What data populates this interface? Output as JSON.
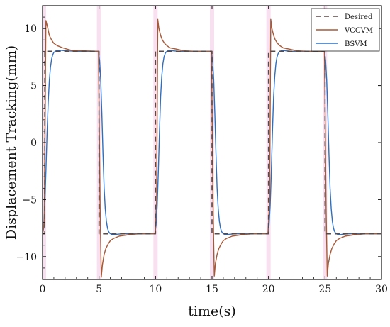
{
  "chart_data": {
    "type": "line",
    "title": "",
    "xlabel": "time(s)",
    "ylabel": "Displacement Tracking(mm)",
    "xlim": [
      0,
      30
    ],
    "ylim": [
      -12,
      12
    ],
    "x_ticks": [
      0,
      5,
      10,
      15,
      20,
      25,
      30
    ],
    "y_ticks": [
      -10,
      -5,
      0,
      5,
      10
    ],
    "x_tick_labels": [
      "0",
      "5",
      "10",
      "15",
      "20",
      "25",
      "30"
    ],
    "y_tick_labels": [
      "−10",
      "−5",
      "0",
      "5",
      "10"
    ],
    "grid": false,
    "legend_position": "top-right",
    "series": [
      {
        "name": "Desired",
        "color": "#5a4a48",
        "style": "dashed",
        "x": [
          0,
          0.2,
          0.2,
          5,
          5,
          10,
          10,
          15,
          15,
          20,
          20,
          25,
          25,
          30
        ],
        "y": [
          -8,
          -8,
          8,
          8,
          -8,
          -8,
          8,
          8,
          -8,
          -8,
          8,
          8,
          -8,
          -8
        ]
      },
      {
        "name": "VCCVM",
        "color": "#a65a3a",
        "style": "solid",
        "x": [
          0,
          0.15,
          0.3,
          0.45,
          0.6,
          0.8,
          1.0,
          1.3,
          1.8,
          2.5,
          3.5,
          4.95,
          5.1,
          5.2,
          5.3,
          5.45,
          5.6,
          5.8,
          6.0,
          6.3,
          6.8,
          7.5,
          8.5,
          9.95,
          10.1,
          10.2,
          10.3,
          10.45,
          10.6,
          10.8,
          11.0,
          11.3,
          11.8,
          12.5,
          13.5,
          14.95,
          15.1,
          15.2,
          15.3,
          15.45,
          15.6,
          15.8,
          16.0,
          16.3,
          16.8,
          17.5,
          18.5,
          19.95,
          20.1,
          20.2,
          20.3,
          20.45,
          20.6,
          20.8,
          21.0,
          21.3,
          21.8,
          22.5,
          23.5,
          24.95,
          25.1,
          25.2,
          25.3,
          25.45,
          25.6,
          25.8,
          26.0,
          26.3,
          26.8,
          27.5,
          28.5,
          30
        ],
        "y": [
          -8,
          -7,
          10.7,
          10.1,
          9.4,
          9.0,
          8.7,
          8.5,
          8.3,
          8.1,
          8.05,
          8.0,
          -6,
          -11.8,
          -10.7,
          -9.8,
          -9.3,
          -8.9,
          -8.6,
          -8.4,
          -8.2,
          -8.1,
          -8.0,
          -8.0,
          -5,
          10.8,
          10.0,
          9.4,
          9.0,
          8.7,
          8.5,
          8.3,
          8.2,
          8.05,
          8.0,
          8.0,
          -6,
          -11.7,
          -10.6,
          -9.8,
          -9.3,
          -8.9,
          -8.6,
          -8.4,
          -8.2,
          -8.1,
          -8.0,
          -8.0,
          -5,
          10.8,
          10.0,
          9.4,
          9.0,
          8.7,
          8.5,
          8.3,
          8.2,
          8.05,
          8.0,
          8.0,
          -6,
          -11.7,
          -10.6,
          -9.8,
          -9.3,
          -8.9,
          -8.6,
          -8.4,
          -8.2,
          -8.1,
          -8.0,
          -8.0
        ]
      },
      {
        "name": "BSVM",
        "color": "#2f6fbf",
        "style": "solid",
        "x": [
          0,
          0.1,
          0.2,
          0.3,
          0.4,
          0.5,
          0.6,
          0.7,
          0.8,
          0.9,
          1.0,
          1.2,
          1.5,
          2.0,
          3.0,
          4.95,
          5.05,
          5.15,
          5.25,
          5.35,
          5.45,
          5.55,
          5.65,
          5.75,
          5.85,
          5.95,
          6.2,
          6.5,
          7.0,
          8.0,
          9.95,
          10.05,
          10.15,
          10.25,
          10.35,
          10.45,
          10.55,
          10.65,
          10.75,
          10.85,
          10.95,
          11.2,
          11.5,
          12.0,
          13.0,
          14.95,
          15.05,
          15.15,
          15.25,
          15.35,
          15.45,
          15.55,
          15.65,
          15.75,
          15.85,
          15.95,
          16.2,
          16.5,
          17.0,
          18.0,
          19.95,
          20.05,
          20.15,
          20.25,
          20.35,
          20.45,
          20.55,
          20.65,
          20.75,
          20.85,
          20.95,
          21.2,
          21.5,
          22.0,
          23.0,
          24.95,
          25.05,
          25.15,
          25.25,
          25.35,
          25.45,
          25.55,
          25.65,
          25.75,
          25.85,
          25.95,
          26.2,
          26.5,
          27.0,
          28.0,
          30
        ],
        "y": [
          -8,
          -7.5,
          -5.5,
          -2.5,
          0.8,
          3.5,
          5.4,
          6.6,
          7.3,
          7.7,
          7.9,
          8.05,
          8.1,
          8.05,
          8.0,
          8.0,
          7.2,
          5.5,
          2.5,
          -1.0,
          -4.0,
          -5.8,
          -6.9,
          -7.5,
          -7.8,
          -7.95,
          -8.1,
          -8.05,
          -8.0,
          -8.0,
          -8.0,
          -7.2,
          -5.5,
          -2.5,
          1.0,
          4.0,
          5.8,
          6.9,
          7.5,
          7.8,
          7.95,
          8.1,
          8.05,
          8.0,
          8.0,
          8.0,
          7.2,
          5.5,
          2.5,
          -1.0,
          -4.0,
          -5.8,
          -6.9,
          -7.5,
          -7.8,
          -7.95,
          -8.1,
          -8.05,
          -8.0,
          -8.0,
          -8.0,
          -7.2,
          -5.5,
          -2.5,
          1.0,
          4.0,
          5.8,
          6.9,
          7.5,
          7.8,
          7.95,
          8.1,
          8.05,
          8.0,
          8.0,
          8.0,
          7.2,
          5.5,
          2.5,
          -1.0,
          -4.0,
          -5.8,
          -6.9,
          -7.5,
          -7.8,
          -7.95,
          -8.1,
          -8.05,
          -8.0,
          -8.0,
          -8.0
        ]
      }
    ],
    "colors": {
      "axis": "#111111",
      "background": "#ffffff",
      "spike_shade": "#f2c6e4",
      "ripple": "#6a4fb0"
    }
  }
}
